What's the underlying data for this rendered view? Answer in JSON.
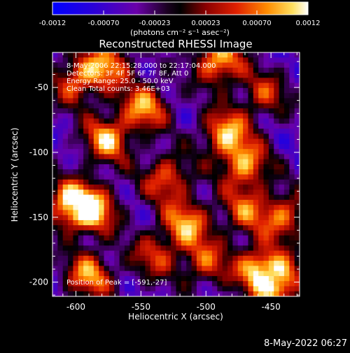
{
  "colorbar": {
    "ticks": [
      "-0.0012",
      "-0.00070",
      "-0.00023",
      "0.00023",
      "0.00070",
      "0.0012"
    ],
    "unit_label": "(photons cm⁻² s⁻¹ asec⁻²)"
  },
  "chart_data": {
    "type": "heatmap",
    "title": "Reconstructed RHESSI Image",
    "xlabel": "Heliocentric X (arcsec)",
    "ylabel": "Heliocentric Y (arcsec)",
    "xlim": [
      -618,
      -428
    ],
    "ylim": [
      -211,
      -23
    ],
    "x_ticks": [
      -600,
      -550,
      -500,
      -450
    ],
    "y_ticks": [
      -50,
      -100,
      -150,
      -200
    ],
    "colorbar_range": [
      -0.0012,
      0.0012
    ],
    "annotations": [
      "8-May-2006 22:15:28.000 to 22:17:04.000",
      "Detectors: 3F 4F 5F 6F 7F 8F, Att 0",
      "Energy Range: 25.0 - 50.0 keV",
      "Clean     Total counts: 3.46E+03"
    ],
    "peak_label": "Position of Peak = [-591,-27]",
    "peak_position": [
      -591,
      -27
    ],
    "grid": false,
    "hot_spots": [
      {
        "x": -603,
        "y": -140,
        "v": 1.0
      },
      {
        "x": -576,
        "y": -90,
        "v": 0.85
      },
      {
        "x": -547,
        "y": -65,
        "v": 0.8
      },
      {
        "x": -585,
        "y": -145,
        "v": 0.75
      },
      {
        "x": -530,
        "y": -120,
        "v": 0.7
      },
      {
        "x": -485,
        "y": -85,
        "v": 0.85
      },
      {
        "x": -470,
        "y": -110,
        "v": 0.8
      },
      {
        "x": -490,
        "y": -30,
        "v": 0.9
      },
      {
        "x": -515,
        "y": -155,
        "v": 0.8
      },
      {
        "x": -540,
        "y": -180,
        "v": 0.55
      },
      {
        "x": -590,
        "y": -195,
        "v": 0.8
      },
      {
        "x": -575,
        "y": -32,
        "v": 0.75
      },
      {
        "x": -445,
        "y": -200,
        "v": 0.95
      },
      {
        "x": -460,
        "y": -190,
        "v": 0.75
      },
      {
        "x": -440,
        "y": -150,
        "v": 0.7
      },
      {
        "x": -470,
        "y": -145,
        "v": 0.6
      },
      {
        "x": -600,
        "y": -45,
        "v": 0.7
      },
      {
        "x": -500,
        "y": -185,
        "v": 0.6
      },
      {
        "x": -455,
        "y": -55,
        "v": 0.55
      }
    ]
  },
  "footer": {
    "date": "8-May-2022 06:27"
  }
}
